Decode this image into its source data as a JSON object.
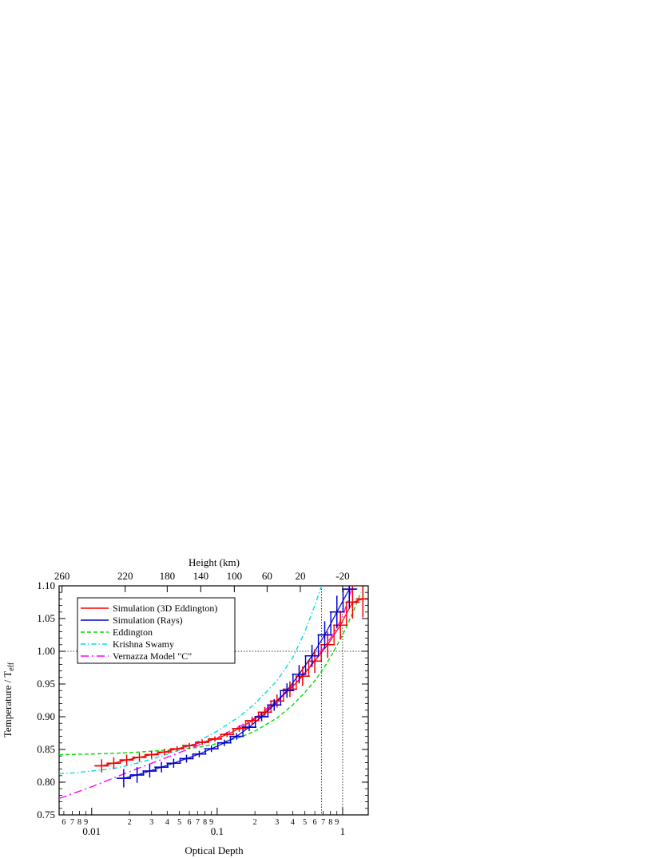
{
  "chart_data": {
    "type": "line",
    "title": "",
    "xlabel": "Optical Depth",
    "ylabel_main": "Temperature / T",
    "ylabel_sub": "eff",
    "top_xlabel": "Height (km)",
    "xscale": "log",
    "xlim": [
      0.0055,
      1.6
    ],
    "ylim": [
      0.75,
      1.1
    ],
    "y_ticks": [
      {
        "v": 0.75,
        "label": "0.75"
      },
      {
        "v": 0.8,
        "label": "0.80"
      },
      {
        "v": 0.85,
        "label": "0.85"
      },
      {
        "v": 0.9,
        "label": "0.90"
      },
      {
        "v": 0.95,
        "label": "0.95"
      },
      {
        "v": 1.0,
        "label": "1.00"
      },
      {
        "v": 1.05,
        "label": "1.05"
      },
      {
        "v": 1.1,
        "label": "1.10"
      }
    ],
    "x_major_ticks": [
      {
        "v": 0.01,
        "label": "0.01"
      },
      {
        "v": 0.1,
        "label": "0.1"
      },
      {
        "v": 1,
        "label": "1"
      }
    ],
    "x_minor_labels": [
      {
        "v": 0.006,
        "label": "6"
      },
      {
        "v": 0.007,
        "label": "7"
      },
      {
        "v": 0.008,
        "label": "8"
      },
      {
        "v": 0.009,
        "label": "9"
      },
      {
        "v": 0.02,
        "label": "2"
      },
      {
        "v": 0.03,
        "label": "3"
      },
      {
        "v": 0.04,
        "label": "4"
      },
      {
        "v": 0.05,
        "label": "5"
      },
      {
        "v": 0.06,
        "label": "6"
      },
      {
        "v": 0.07,
        "label": "7"
      },
      {
        "v": 0.08,
        "label": "8"
      },
      {
        "v": 0.09,
        "label": "9"
      },
      {
        "v": 0.2,
        "label": "2"
      },
      {
        "v": 0.3,
        "label": "3"
      },
      {
        "v": 0.4,
        "label": "4"
      },
      {
        "v": 0.5,
        "label": "5"
      },
      {
        "v": 0.6,
        "label": "6"
      },
      {
        "v": 0.7,
        "label": "7"
      },
      {
        "v": 0.8,
        "label": "8"
      },
      {
        "v": 0.9,
        "label": "9"
      }
    ],
    "top_ticks": [
      {
        "tau": 0.0058,
        "label": "260"
      },
      {
        "tau": 0.0185,
        "label": "220"
      },
      {
        "tau": 0.04,
        "label": "180"
      },
      {
        "tau": 0.074,
        "label": "140"
      },
      {
        "tau": 0.137,
        "label": "100"
      },
      {
        "tau": 0.25,
        "label": "60"
      },
      {
        "tau": 0.46,
        "label": "20"
      },
      {
        "tau": 1.0,
        "label": "-20"
      }
    ],
    "reference_lines": {
      "y": 1.0,
      "x": [
        0.68,
        1.0
      ]
    },
    "legend": {
      "position": "top-left",
      "entries": [
        {
          "label": "Simulation (3D Eddington)",
          "color": "#ff0000",
          "dash": "solid"
        },
        {
          "label": "Simulation (Rays)",
          "color": "#0000cc",
          "dash": "solid"
        },
        {
          "label": "Eddington",
          "color": "#00dd00",
          "dash": "dash"
        },
        {
          "label": "Krishna Swamy",
          "color": "#00dddd",
          "dash": "dashdot"
        },
        {
          "label": "Vernazza Model \"C\"",
          "color": "#ff00ff",
          "dash": "longdashdot"
        }
      ]
    },
    "series": [
      {
        "name": "Simulation (3D Eddington)",
        "color": "#ff0000",
        "style": "step",
        "x": [
          0.012,
          0.015,
          0.019,
          0.024,
          0.03,
          0.038,
          0.048,
          0.06,
          0.076,
          0.096,
          0.12,
          0.15,
          0.19,
          0.24,
          0.3,
          0.38,
          0.48,
          0.6,
          0.76,
          0.96,
          1.2,
          1.45
        ],
        "y": [
          0.825,
          0.829,
          0.834,
          0.838,
          0.842,
          0.846,
          0.851,
          0.856,
          0.861,
          0.866,
          0.873,
          0.882,
          0.894,
          0.907,
          0.924,
          0.942,
          0.962,
          0.985,
          1.01,
          1.04,
          1.075,
          1.08
        ]
      },
      {
        "name": "Simulation (Rays)",
        "color": "#0000cc",
        "style": "step",
        "x": [
          0.018,
          0.023,
          0.029,
          0.036,
          0.045,
          0.057,
          0.072,
          0.09,
          0.114,
          0.143,
          0.18,
          0.226,
          0.285,
          0.36,
          0.45,
          0.57,
          0.72,
          0.9,
          1.13
        ],
        "y": [
          0.806,
          0.811,
          0.817,
          0.823,
          0.829,
          0.836,
          0.843,
          0.851,
          0.86,
          0.87,
          0.884,
          0.9,
          0.918,
          0.94,
          0.965,
          0.993,
          1.025,
          1.06,
          1.095
        ]
      },
      {
        "name": "Eddington",
        "color": "#00dd00",
        "style": "dash",
        "x": [
          0.0055,
          0.01,
          0.02,
          0.04,
          0.07,
          0.1,
          0.15,
          0.2,
          0.3,
          0.4,
          0.5,
          0.6,
          0.7,
          0.8,
          1.0,
          1.2,
          1.4
        ],
        "y": [
          0.842,
          0.843,
          0.845,
          0.849,
          0.853,
          0.859,
          0.868,
          0.878,
          0.898,
          0.918,
          0.937,
          0.955,
          0.973,
          0.991,
          1.025,
          1.058,
          1.09
        ]
      },
      {
        "name": "Krishna Swamy",
        "color": "#00dddd",
        "style": "dashdot",
        "x": [
          0.0055,
          0.007,
          0.01,
          0.015,
          0.02,
          0.03,
          0.05,
          0.07,
          0.1,
          0.15,
          0.2,
          0.3,
          0.4,
          0.5,
          0.6,
          0.68
        ],
        "y": [
          0.813,
          0.814,
          0.817,
          0.821,
          0.826,
          0.835,
          0.849,
          0.862,
          0.878,
          0.9,
          0.92,
          0.955,
          0.99,
          1.03,
          1.07,
          1.1
        ]
      },
      {
        "name": "Vernazza Model \"C\"",
        "color": "#ff00ff",
        "style": "longdashdot",
        "x": [
          0.0055,
          0.01,
          0.02,
          0.04,
          0.07,
          0.1,
          0.15,
          0.2,
          0.3,
          0.4,
          0.5,
          0.6,
          0.7,
          0.8,
          1.0,
          1.2
        ],
        "y": [
          0.775,
          0.793,
          0.816,
          0.838,
          0.856,
          0.868,
          0.885,
          0.898,
          0.925,
          0.948,
          0.968,
          0.986,
          1.004,
          1.02,
          1.052,
          1.1
        ]
      }
    ],
    "error_bars": {
      "red": {
        "x": [
          0.012,
          0.015,
          0.019,
          0.024,
          0.03,
          0.038,
          0.048,
          0.06,
          0.076,
          0.096,
          0.12,
          0.15,
          0.19,
          0.24,
          0.3,
          0.38,
          0.48,
          0.6,
          0.76,
          0.96,
          1.2,
          1.45
        ],
        "y": [
          0.825,
          0.829,
          0.834,
          0.838,
          0.842,
          0.846,
          0.851,
          0.856,
          0.861,
          0.866,
          0.873,
          0.882,
          0.894,
          0.907,
          0.924,
          0.942,
          0.962,
          0.985,
          1.01,
          1.04,
          1.075,
          1.08
        ],
        "yerr": [
          0.01,
          0.009,
          0.008,
          0.007,
          0.006,
          0.005,
          0.004,
          0.004,
          0.004,
          0.004,
          0.004,
          0.005,
          0.006,
          0.008,
          0.01,
          0.012,
          0.015,
          0.018,
          0.02,
          0.022,
          0.025,
          0.028
        ]
      },
      "blue": {
        "x": [
          0.018,
          0.023,
          0.029,
          0.036,
          0.045,
          0.057,
          0.072,
          0.09,
          0.114,
          0.143,
          0.18,
          0.226,
          0.285,
          0.36,
          0.45,
          0.57,
          0.72,
          0.9,
          1.13
        ],
        "y": [
          0.806,
          0.811,
          0.817,
          0.823,
          0.829,
          0.836,
          0.843,
          0.851,
          0.86,
          0.87,
          0.884,
          0.9,
          0.918,
          0.94,
          0.965,
          0.993,
          1.025,
          1.06,
          1.095
        ],
        "yerr": [
          0.014,
          0.012,
          0.01,
          0.008,
          0.007,
          0.006,
          0.005,
          0.005,
          0.005,
          0.005,
          0.006,
          0.007,
          0.009,
          0.011,
          0.014,
          0.017,
          0.021,
          0.025,
          0.03
        ]
      }
    }
  }
}
